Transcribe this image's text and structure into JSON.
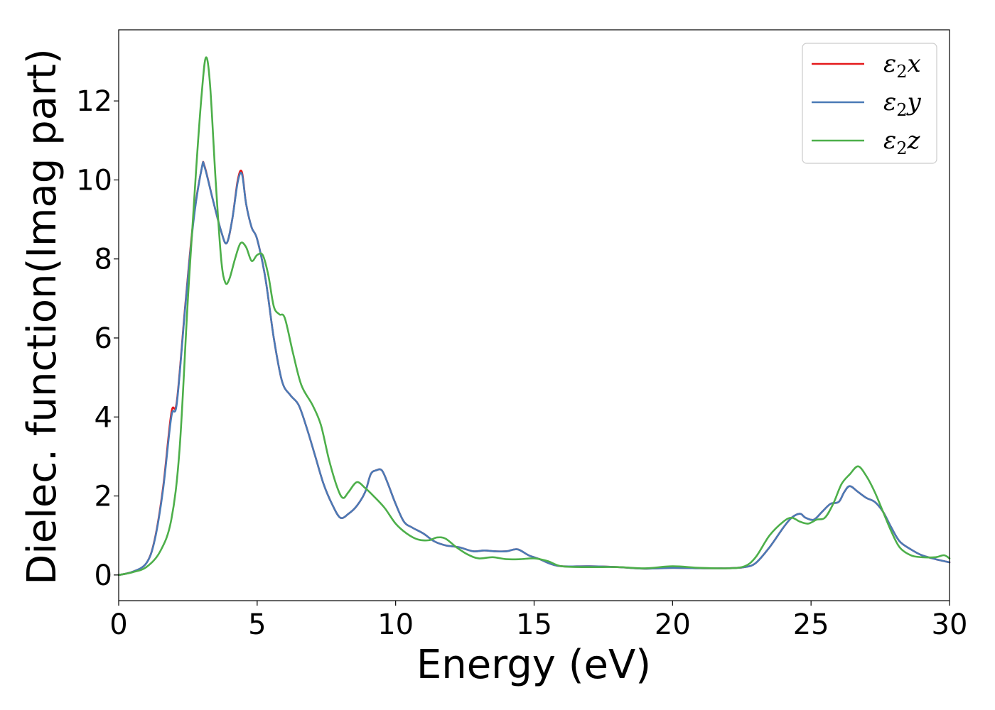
{
  "chart_data": {
    "type": "line",
    "xlabel": "Energy (eV)",
    "ylabel": "Dielec. function(Imag part)",
    "xlim": [
      0,
      30
    ],
    "ylim": [
      -0.65,
      13.8
    ],
    "xticks": [
      0,
      5,
      10,
      15,
      20,
      25,
      30
    ],
    "xtick_labels": [
      "0",
      "5",
      "10",
      "15",
      "20",
      "25",
      "30"
    ],
    "yticks": [
      0,
      2,
      4,
      6,
      8,
      10,
      12
    ],
    "ytick_labels": [
      "0",
      "2",
      "4",
      "6",
      "8",
      "10",
      "12"
    ],
    "grid": false,
    "legend_position": "top-right",
    "series": [
      {
        "name": "ε2x",
        "legend": {
          "symbol": "ε",
          "sub": "2",
          "suffix": "x"
        },
        "color": "#e41a1c",
        "x": [
          0,
          0.5,
          1.0,
          1.3,
          1.6,
          1.9,
          2.1,
          2.4,
          2.7,
          3.0,
          3.1,
          3.4,
          3.7,
          3.9,
          4.1,
          4.3,
          4.45,
          4.6,
          4.8,
          5.0,
          5.3,
          5.6,
          5.9,
          6.2,
          6.5,
          6.8,
          7.1,
          7.4,
          7.7,
          8.0,
          8.3,
          8.6,
          8.9,
          9.1,
          9.3,
          9.5,
          9.7,
          10.0,
          10.3,
          10.6,
          11.0,
          11.4,
          11.8,
          12.3,
          12.8,
          13.2,
          13.6,
          14.0,
          14.4,
          14.8,
          15.2,
          15.6,
          16.0,
          17.0,
          18.0,
          19.0,
          20.0,
          21.0,
          22.0,
          22.6,
          23.0,
          23.5,
          24.0,
          24.3,
          24.6,
          24.8,
          25.1,
          25.4,
          25.7,
          26.0,
          26.2,
          26.4,
          26.7,
          27.0,
          27.3,
          27.6,
          27.9,
          28.2,
          28.6,
          29.0,
          29.5,
          30.0
        ],
        "values": [
          0,
          0.08,
          0.3,
          0.9,
          2.2,
          4.1,
          4.4,
          6.8,
          9.0,
          10.3,
          10.35,
          9.5,
          8.7,
          8.4,
          9.0,
          10.0,
          10.2,
          9.4,
          8.8,
          8.5,
          7.5,
          6.0,
          4.9,
          4.55,
          4.3,
          3.7,
          3.0,
          2.3,
          1.8,
          1.45,
          1.55,
          1.75,
          2.1,
          2.55,
          2.65,
          2.65,
          2.35,
          1.8,
          1.35,
          1.2,
          1.05,
          0.85,
          0.75,
          0.7,
          0.6,
          0.62,
          0.6,
          0.6,
          0.65,
          0.5,
          0.4,
          0.28,
          0.22,
          0.22,
          0.2,
          0.16,
          0.18,
          0.17,
          0.17,
          0.2,
          0.3,
          0.7,
          1.2,
          1.45,
          1.55,
          1.45,
          1.4,
          1.6,
          1.8,
          1.85,
          2.1,
          2.25,
          2.1,
          1.95,
          1.85,
          1.6,
          1.2,
          0.85,
          0.65,
          0.5,
          0.4,
          0.32
        ]
      },
      {
        "name": "ε2y",
        "legend": {
          "symbol": "ε",
          "sub": "2",
          "suffix": "y"
        },
        "color": "#4a7ab6",
        "x": [
          0,
          0.5,
          1.0,
          1.3,
          1.6,
          1.9,
          2.1,
          2.4,
          2.7,
          3.0,
          3.1,
          3.4,
          3.7,
          3.9,
          4.1,
          4.3,
          4.45,
          4.6,
          4.8,
          5.0,
          5.3,
          5.6,
          5.9,
          6.2,
          6.5,
          6.8,
          7.1,
          7.4,
          7.7,
          8.0,
          8.3,
          8.6,
          8.9,
          9.1,
          9.3,
          9.5,
          9.7,
          10.0,
          10.3,
          10.6,
          11.0,
          11.4,
          11.8,
          12.3,
          12.8,
          13.2,
          13.6,
          14.0,
          14.4,
          14.8,
          15.2,
          15.6,
          16.0,
          17.0,
          18.0,
          19.0,
          20.0,
          21.0,
          22.0,
          22.6,
          23.0,
          23.5,
          24.0,
          24.3,
          24.6,
          24.8,
          25.1,
          25.4,
          25.7,
          26.0,
          26.2,
          26.4,
          26.7,
          27.0,
          27.3,
          27.6,
          27.9,
          28.2,
          28.6,
          29.0,
          29.5,
          30.0
        ],
        "values": [
          0,
          0.08,
          0.3,
          0.88,
          2.15,
          4.0,
          4.35,
          6.75,
          8.95,
          10.3,
          10.33,
          9.5,
          8.7,
          8.4,
          9.0,
          9.95,
          10.15,
          9.4,
          8.8,
          8.5,
          7.5,
          6.0,
          4.9,
          4.55,
          4.3,
          3.7,
          3.0,
          2.3,
          1.8,
          1.45,
          1.55,
          1.75,
          2.1,
          2.55,
          2.65,
          2.65,
          2.35,
          1.8,
          1.35,
          1.2,
          1.05,
          0.85,
          0.75,
          0.7,
          0.6,
          0.62,
          0.6,
          0.6,
          0.65,
          0.5,
          0.4,
          0.28,
          0.22,
          0.22,
          0.2,
          0.16,
          0.18,
          0.17,
          0.17,
          0.2,
          0.3,
          0.7,
          1.2,
          1.45,
          1.55,
          1.45,
          1.4,
          1.6,
          1.8,
          1.85,
          2.1,
          2.25,
          2.1,
          1.95,
          1.85,
          1.6,
          1.2,
          0.85,
          0.65,
          0.5,
          0.4,
          0.32
        ]
      },
      {
        "name": "ε2z",
        "legend": {
          "symbol": "ε",
          "sub": "2",
          "suffix": "z"
        },
        "color": "#4daf4a",
        "x": [
          0,
          0.5,
          1.0,
          1.5,
          1.9,
          2.2,
          2.5,
          2.8,
          3.0,
          3.15,
          3.3,
          3.5,
          3.7,
          3.85,
          4.0,
          4.2,
          4.4,
          4.6,
          4.8,
          5.0,
          5.2,
          5.4,
          5.6,
          5.8,
          6.0,
          6.3,
          6.6,
          7.0,
          7.3,
          7.6,
          7.9,
          8.1,
          8.3,
          8.6,
          8.9,
          9.2,
          9.6,
          10.0,
          10.4,
          10.8,
          11.2,
          11.5,
          11.8,
          12.2,
          12.6,
          13.0,
          13.5,
          14.0,
          14.5,
          15.0,
          15.5,
          16.0,
          17.0,
          18.0,
          19.0,
          20.0,
          21.0,
          22.0,
          22.6,
          23.0,
          23.5,
          24.0,
          24.3,
          24.6,
          24.9,
          25.2,
          25.5,
          25.8,
          26.1,
          26.4,
          26.7,
          27.0,
          27.3,
          27.6,
          27.9,
          28.2,
          28.6,
          29.0,
          29.5,
          29.8,
          30.0
        ],
        "values": [
          0,
          0.07,
          0.2,
          0.6,
          1.4,
          3.2,
          7.0,
          10.3,
          12.2,
          13.1,
          12.4,
          10.0,
          8.0,
          7.4,
          7.5,
          8.0,
          8.4,
          8.3,
          7.95,
          8.1,
          8.1,
          7.6,
          6.8,
          6.6,
          6.5,
          5.6,
          4.8,
          4.3,
          3.8,
          2.9,
          2.2,
          1.95,
          2.1,
          2.35,
          2.2,
          2.0,
          1.7,
          1.3,
          1.05,
          0.9,
          0.88,
          0.95,
          0.92,
          0.7,
          0.52,
          0.42,
          0.45,
          0.4,
          0.4,
          0.42,
          0.35,
          0.22,
          0.2,
          0.2,
          0.17,
          0.22,
          0.18,
          0.17,
          0.22,
          0.45,
          1.0,
          1.35,
          1.45,
          1.35,
          1.3,
          1.4,
          1.45,
          1.8,
          2.3,
          2.55,
          2.75,
          2.5,
          2.1,
          1.6,
          1.1,
          0.7,
          0.5,
          0.45,
          0.45,
          0.5,
          0.42
        ]
      }
    ]
  }
}
